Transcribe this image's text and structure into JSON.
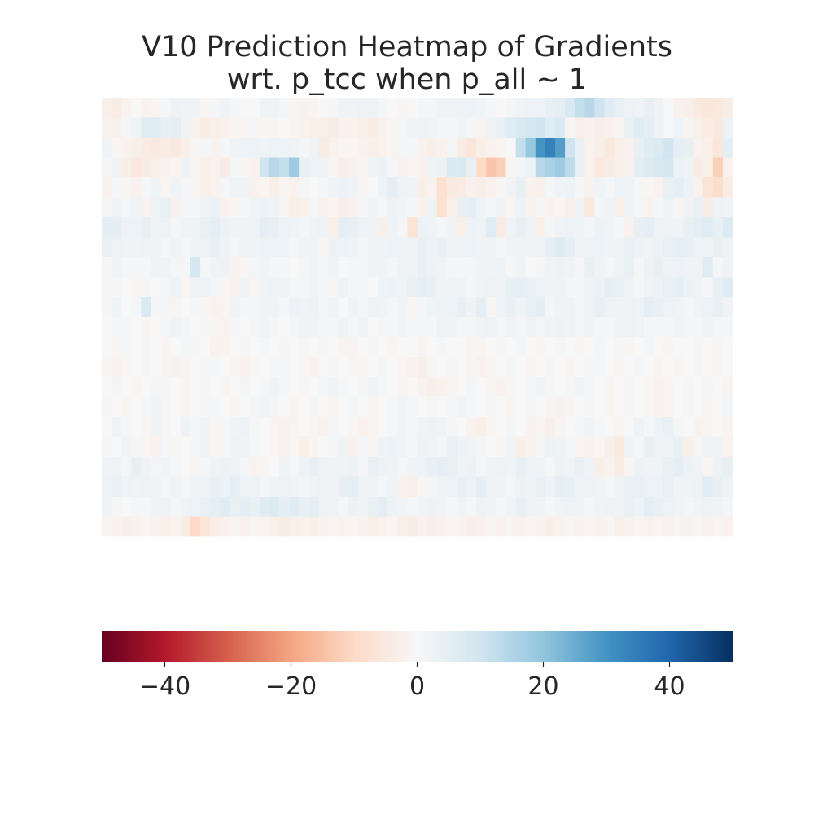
{
  "chart_data": {
    "type": "heatmap",
    "title_lines": [
      "V10 Prediction Heatmap of Gradients",
      "wrt. p_tcc when p_all ~ 1"
    ],
    "xlabel": "",
    "ylabel": "",
    "colormap": "RdBu",
    "colormap_stops": [
      "#67001f",
      "#b2182b",
      "#d6604d",
      "#f4a582",
      "#fddbc7",
      "#f7f7f7",
      "#d1e5f0",
      "#92c5de",
      "#4393c3",
      "#2166ac",
      "#053061"
    ],
    "vmin": -50,
    "vmax": 50,
    "colorbar": {
      "orientation": "horizontal",
      "placement": "bottom",
      "ticks": [
        -40,
        -20,
        0,
        20,
        40
      ],
      "tick_labels": [
        "−40",
        "−20",
        "0",
        "20",
        "40"
      ]
    },
    "n_rows": 22,
    "n_cols": 64,
    "grid": false,
    "values": [
      [
        -3,
        -4,
        -2,
        0,
        -2,
        -1,
        1,
        3,
        2,
        2,
        -1,
        1,
        2,
        1,
        0,
        0,
        2,
        2,
        1,
        -1,
        -2,
        -1,
        0,
        1,
        2,
        2,
        3,
        3,
        1,
        0,
        -1,
        0,
        1,
        1,
        2,
        2,
        3,
        3,
        2,
        1,
        0,
        1,
        2,
        3,
        3,
        4,
        5,
        8,
        12,
        14,
        10,
        6,
        4,
        3,
        2,
        4,
        2,
        0,
        -2,
        -3,
        -5,
        -6,
        -5,
        -4
      ],
      [
        -2,
        -3,
        1,
        2,
        6,
        6,
        4,
        5,
        2,
        -2,
        -4,
        -3,
        -2,
        -1,
        -1,
        1,
        -1,
        -1,
        0,
        -1,
        -2,
        -3,
        -3,
        -4,
        -2,
        -2,
        -3,
        -4,
        -2,
        -1,
        1,
        2,
        3,
        2,
        1,
        1,
        2,
        1,
        -2,
        3,
        4,
        6,
        8,
        9,
        10,
        6,
        8,
        -1,
        -3,
        -2,
        -3,
        -2,
        -1,
        4,
        6,
        5,
        2,
        0,
        2,
        -1,
        -3,
        -4,
        -5,
        3
      ],
      [
        2,
        -1,
        -2,
        -3,
        -4,
        -5,
        -4,
        -5,
        -3,
        -1,
        1,
        -2,
        1,
        2,
        3,
        3,
        2,
        3,
        3,
        2,
        1,
        2,
        -4,
        -2,
        -1,
        -1,
        -2,
        -3,
        -2,
        -1,
        1,
        1,
        -2,
        -3,
        -2,
        1,
        -4,
        -6,
        -3,
        -2,
        -1,
        0,
        12,
        19,
        30,
        34,
        28,
        10,
        4,
        -2,
        -3,
        -5,
        -3,
        -2,
        4,
        6,
        7,
        10,
        5,
        4,
        -2,
        -3,
        -6,
        5
      ],
      [
        1,
        2,
        -3,
        -5,
        -4,
        -3,
        -2,
        -1,
        2,
        -1,
        -3,
        -2,
        -4,
        1,
        -1,
        -2,
        10,
        14,
        12,
        18,
        4,
        3,
        2,
        -1,
        -3,
        -2,
        -1,
        2,
        3,
        1,
        -2,
        -1,
        -2,
        2,
        3,
        7,
        8,
        4,
        -10,
        -14,
        -12,
        -1,
        1,
        3,
        14,
        16,
        18,
        13,
        4,
        -2,
        -5,
        -4,
        -3,
        -2,
        5,
        7,
        8,
        9,
        3,
        2,
        -4,
        -3,
        -12,
        -2
      ],
      [
        -2,
        1,
        -1,
        -2,
        1,
        2,
        -1,
        2,
        1,
        -1,
        -3,
        -2,
        1,
        2,
        2,
        -2,
        -1,
        -3,
        -1,
        -2,
        1,
        0,
        1,
        2,
        3,
        2,
        -1,
        0,
        3,
        5,
        3,
        2,
        -3,
        -2,
        -8,
        -5,
        -4,
        -2,
        -3,
        -2,
        -1,
        2,
        4,
        -2,
        -3,
        1,
        2,
        3,
        1,
        -2,
        2,
        1,
        3,
        2,
        1,
        -1,
        -2,
        4,
        5,
        3,
        -2,
        -7,
        -9,
        -4
      ],
      [
        1,
        2,
        1,
        2,
        -2,
        3,
        4,
        -2,
        1,
        1,
        2,
        3,
        -2,
        -1,
        1,
        2,
        3,
        2,
        -1,
        -3,
        -2,
        1,
        -2,
        -1,
        -3,
        -2,
        1,
        2,
        1,
        3,
        2,
        1,
        -2,
        2,
        -8,
        -3,
        4,
        5,
        2,
        1,
        2,
        -1,
        3,
        -2,
        1,
        -2,
        -1,
        -3,
        2,
        -5,
        1,
        2,
        -3,
        2,
        1,
        -2,
        1,
        3,
        -1,
        2,
        4,
        -4,
        3,
        2
      ],
      [
        5,
        5,
        3,
        3,
        4,
        2,
        3,
        1,
        2,
        2,
        4,
        5,
        3,
        2,
        2,
        3,
        5,
        4,
        3,
        2,
        1,
        2,
        3,
        -3,
        5,
        4,
        3,
        2,
        -3,
        2,
        1,
        -7,
        3,
        2,
        1,
        2,
        -3,
        3,
        2,
        6,
        -4,
        2,
        4,
        3,
        -3,
        1,
        2,
        3,
        2,
        1,
        3,
        2,
        1,
        -2,
        4,
        5,
        3,
        2,
        2,
        4,
        5,
        6,
        4,
        7
      ],
      [
        4,
        3,
        2,
        2,
        3,
        2,
        1,
        2,
        1,
        2,
        3,
        4,
        2,
        1,
        2,
        2,
        3,
        3,
        3,
        1,
        2,
        2,
        -1,
        3,
        3,
        2,
        1,
        2,
        2,
        3,
        3,
        2,
        4,
        3,
        4,
        2,
        3,
        3,
        2,
        2,
        1,
        2,
        2,
        2,
        3,
        5,
        7,
        5,
        2,
        3,
        3,
        2,
        2,
        4,
        3,
        2,
        3,
        4,
        5,
        4,
        3,
        2,
        4,
        3
      ],
      [
        1,
        2,
        1,
        1,
        1,
        3,
        2,
        1,
        1,
        9,
        1,
        2,
        3,
        -2,
        -1,
        1,
        2,
        1,
        1,
        0,
        1,
        2,
        1,
        2,
        0,
        1,
        1,
        2,
        2,
        1,
        3,
        2,
        4,
        3,
        2,
        1,
        1,
        1,
        2,
        2,
        3,
        1,
        2,
        0,
        1,
        2,
        3,
        2,
        1,
        4,
        2,
        1,
        2,
        4,
        1,
        3,
        4,
        2,
        3,
        2,
        2,
        6,
        1,
        2
      ],
      [
        1,
        1,
        0,
        -1,
        1,
        0,
        1,
        2,
        -1,
        2,
        3,
        1,
        -1,
        -2,
        2,
        -1,
        2,
        3,
        2,
        1,
        1,
        2,
        1,
        -1,
        2,
        1,
        1,
        0,
        2,
        3,
        2,
        4,
        5,
        4,
        2,
        3,
        2,
        1,
        2,
        3,
        2,
        4,
        5,
        4,
        3,
        2,
        2,
        1,
        1,
        2,
        3,
        5,
        4,
        2,
        1,
        2,
        3,
        4,
        5,
        3,
        2,
        1,
        4,
        6
      ],
      [
        1,
        2,
        0,
        1,
        8,
        1,
        1,
        -1,
        0,
        1,
        -1,
        -2,
        -1,
        2,
        1,
        1,
        2,
        2,
        1,
        3,
        2,
        3,
        1,
        2,
        0,
        2,
        1,
        3,
        2,
        1,
        2,
        -1,
        1,
        2,
        3,
        3,
        4,
        2,
        5,
        -1,
        3,
        4,
        2,
        4,
        5,
        1,
        2,
        2,
        1,
        2,
        4,
        3,
        2,
        3,
        2,
        5,
        4,
        3,
        2,
        1,
        2,
        3,
        4,
        2
      ],
      [
        0,
        1,
        1,
        0,
        -1,
        0,
        1,
        2,
        1,
        0,
        1,
        -1,
        -2,
        1,
        0,
        1,
        2,
        1,
        0,
        1,
        2,
        2,
        1,
        1,
        2,
        1,
        2,
        0,
        1,
        1,
        2,
        1,
        1,
        1,
        3,
        2,
        1,
        1,
        2,
        3,
        1,
        2,
        1,
        2,
        1,
        2,
        3,
        2,
        1,
        2,
        1,
        1,
        2,
        3,
        2,
        1,
        1,
        1,
        2,
        1,
        1,
        2,
        1,
        1
      ],
      [
        0,
        -1,
        1,
        0,
        1,
        0,
        -1,
        0,
        1,
        1,
        0,
        -2,
        -1,
        0,
        1,
        0,
        1,
        0,
        1,
        0,
        -1,
        0,
        1,
        0,
        -1,
        -1,
        0,
        1,
        0,
        -1,
        0,
        0,
        -1,
        0,
        1,
        0,
        0,
        -1,
        -1,
        0,
        1,
        0,
        1,
        0,
        -1,
        0,
        1,
        0,
        -1,
        0,
        1,
        0,
        1,
        -1,
        0,
        1,
        0,
        -1,
        0,
        0,
        1,
        0,
        -1,
        0
      ],
      [
        -1,
        -2,
        -1,
        0,
        1,
        0,
        -1,
        -2,
        -1,
        0,
        1,
        1,
        0,
        -1,
        -2,
        -1,
        0,
        1,
        1,
        0,
        -1,
        -2,
        0,
        1,
        0,
        -1,
        -1,
        0,
        1,
        0,
        -1,
        -2,
        -3,
        -1,
        0,
        1,
        0,
        -1,
        -2,
        -1,
        0,
        1,
        0,
        -1,
        0,
        1,
        0,
        -1,
        0,
        1,
        1,
        0,
        -1,
        0,
        1,
        0,
        -1,
        0,
        -1,
        0,
        1,
        0,
        -1,
        0
      ],
      [
        0,
        1,
        0,
        -1,
        0,
        1,
        1,
        0,
        -1,
        0,
        1,
        0,
        -1,
        0,
        1,
        0,
        1,
        2,
        1,
        0,
        -1,
        0,
        1,
        2,
        1,
        0,
        1,
        2,
        1,
        0,
        -1,
        0,
        -2,
        -3,
        -2,
        -1,
        0,
        1,
        0,
        -1,
        -2,
        -1,
        0,
        1,
        2,
        1,
        0,
        1,
        2,
        1,
        0,
        -1,
        0,
        1,
        0,
        -1,
        -2,
        -1,
        0,
        1,
        0,
        1,
        0,
        -1
      ],
      [
        1,
        0,
        -1,
        0,
        1,
        2,
        1,
        0,
        -1,
        0,
        1,
        1,
        0,
        -1,
        0,
        1,
        2,
        1,
        0,
        -1,
        0,
        1,
        0,
        -1,
        0,
        1,
        0,
        -1,
        0,
        1,
        2,
        1,
        0,
        -1,
        0,
        1,
        2,
        1,
        0,
        1,
        0,
        -1,
        0,
        1,
        0,
        -1,
        -2,
        -1,
        0,
        1,
        0,
        -1,
        0,
        1,
        0,
        -1,
        -2,
        -1,
        0,
        1,
        0,
        -1,
        0,
        1
      ],
      [
        0,
        3,
        1,
        0,
        -1,
        2,
        1,
        0,
        3,
        1,
        2,
        -1,
        1,
        2,
        3,
        1,
        0,
        -1,
        -2,
        -1,
        0,
        -1,
        -2,
        1,
        0,
        -1,
        -2,
        -1,
        0,
        1,
        2,
        1,
        2,
        3,
        2,
        1,
        0,
        -2,
        -3,
        -1,
        0,
        1,
        0,
        -2,
        -1,
        -3,
        -1,
        0,
        1,
        2,
        1,
        0,
        -1,
        0,
        2,
        1,
        3,
        4,
        1,
        0,
        -2,
        -1,
        0,
        -1
      ],
      [
        1,
        0,
        2,
        1,
        -1,
        -2,
        1,
        -1,
        0,
        1,
        2,
        -1,
        1,
        3,
        2,
        1,
        0,
        -1,
        -2,
        -1,
        -3,
        -1,
        0,
        1,
        2,
        -2,
        1,
        -1,
        2,
        3,
        2,
        1,
        3,
        2,
        1,
        4,
        3,
        2,
        1,
        0,
        -1,
        2,
        -3,
        -2,
        1,
        3,
        2,
        1,
        -1,
        -2,
        -1,
        -3,
        -5,
        2,
        1,
        4,
        3,
        2,
        4,
        -3,
        1,
        2,
        3,
        -2
      ],
      [
        2,
        3,
        1,
        4,
        2,
        1,
        2,
        1,
        0,
        -1,
        1,
        2,
        3,
        2,
        1,
        -2,
        -1,
        0,
        2,
        1,
        3,
        4,
        3,
        2,
        2,
        3,
        1,
        4,
        3,
        2,
        1,
        2,
        3,
        4,
        5,
        4,
        2,
        3,
        1,
        2,
        3,
        2,
        4,
        3,
        2,
        1,
        3,
        2,
        4,
        2,
        -3,
        -2,
        -4,
        -1,
        3,
        2,
        2,
        4,
        5,
        3,
        2,
        -1,
        3,
        4
      ],
      [
        3,
        4,
        3,
        2,
        3,
        2,
        1,
        2,
        1,
        2,
        3,
        4,
        3,
        5,
        2,
        3,
        1,
        2,
        3,
        2,
        1,
        2,
        3,
        2,
        4,
        5,
        3,
        2,
        1,
        2,
        -2,
        -3,
        -1,
        1,
        2,
        3,
        4,
        3,
        5,
        2,
        2,
        1,
        3,
        2,
        4,
        3,
        5,
        4,
        2,
        3,
        2,
        1,
        2,
        4,
        4,
        3,
        3,
        4,
        2,
        2,
        3,
        6,
        4,
        3
      ],
      [
        2,
        1,
        0,
        1,
        1,
        2,
        3,
        1,
        2,
        3,
        4,
        5,
        6,
        4,
        5,
        4,
        6,
        7,
        5,
        6,
        4,
        5,
        3,
        2,
        1,
        3,
        2,
        4,
        5,
        3,
        2,
        1,
        2,
        3,
        2,
        1,
        2,
        1,
        3,
        2,
        1,
        2,
        4,
        3,
        2,
        1,
        2,
        3,
        2,
        1,
        2,
        3,
        2,
        4,
        3,
        5,
        4,
        3,
        2,
        1,
        2,
        3,
        2,
        1
      ],
      [
        -1,
        -2,
        -3,
        -2,
        -1,
        -2,
        -3,
        -2,
        -4,
        -10,
        -6,
        -3,
        -2,
        -1,
        -2,
        -1,
        -2,
        -3,
        -4,
        -3,
        -2,
        -3,
        -2,
        -1,
        -2,
        -1,
        -2,
        -3,
        -2,
        -1,
        -3,
        -4,
        -2,
        -3,
        -2,
        -1,
        -2,
        -3,
        -2,
        -1,
        -2,
        -1,
        -2,
        -1,
        -2,
        -3,
        -2,
        -1,
        -2,
        -1,
        -2,
        -1,
        -3,
        -2,
        -1,
        -2,
        -1,
        -2,
        -1,
        -2,
        -1,
        -2,
        -1,
        -2
      ]
    ]
  }
}
